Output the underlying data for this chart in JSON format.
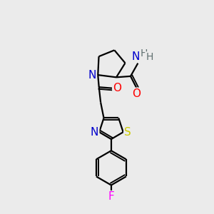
{
  "bg_color": "#ebebeb",
  "bond_color": "#000000",
  "line_width": 1.6,
  "atom_colors": {
    "N": "#0000cc",
    "O": "#ff0000",
    "S": "#cccc00",
    "F": "#ff00ff",
    "H": "#607070",
    "C": "#000000"
  },
  "font_size": 10,
  "fig_size": [
    3.0,
    3.0
  ],
  "dpi": 100
}
